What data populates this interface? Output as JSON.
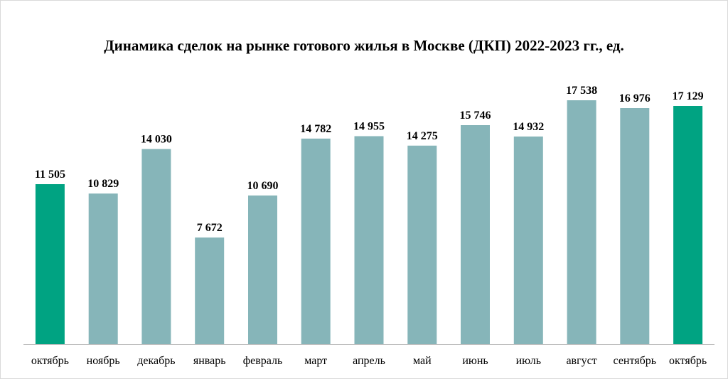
{
  "chart_data": {
    "type": "bar",
    "title": "Динамика сделок на рынке готового жилья в Москве (ДКП) 2022-2023 гг., ед.",
    "xlabel": "",
    "ylabel": "",
    "ylim": [
      0,
      18500
    ],
    "grid": false,
    "categories": [
      "октябрь",
      "ноябрь",
      "декабрь",
      "январь",
      "февраль",
      "март",
      "апрель",
      "май",
      "июнь",
      "июль",
      "август",
      "сентябрь",
      "октябрь"
    ],
    "values": [
      11505,
      10829,
      14030,
      7672,
      10690,
      14782,
      14955,
      14275,
      15746,
      14932,
      17538,
      16976,
      17129
    ],
    "labels": [
      "11 505",
      "10 829",
      "14 030",
      "7 672",
      "10 690",
      "14 782",
      "14 955",
      "14 275",
      "15 746",
      "14 932",
      "17 538",
      "16 976",
      "17 129"
    ],
    "highlighted": [
      0,
      12
    ]
  },
  "colors": {
    "bar": "#86b5b9",
    "highlight": "#00a382",
    "axis": "#bfbfbf"
  }
}
